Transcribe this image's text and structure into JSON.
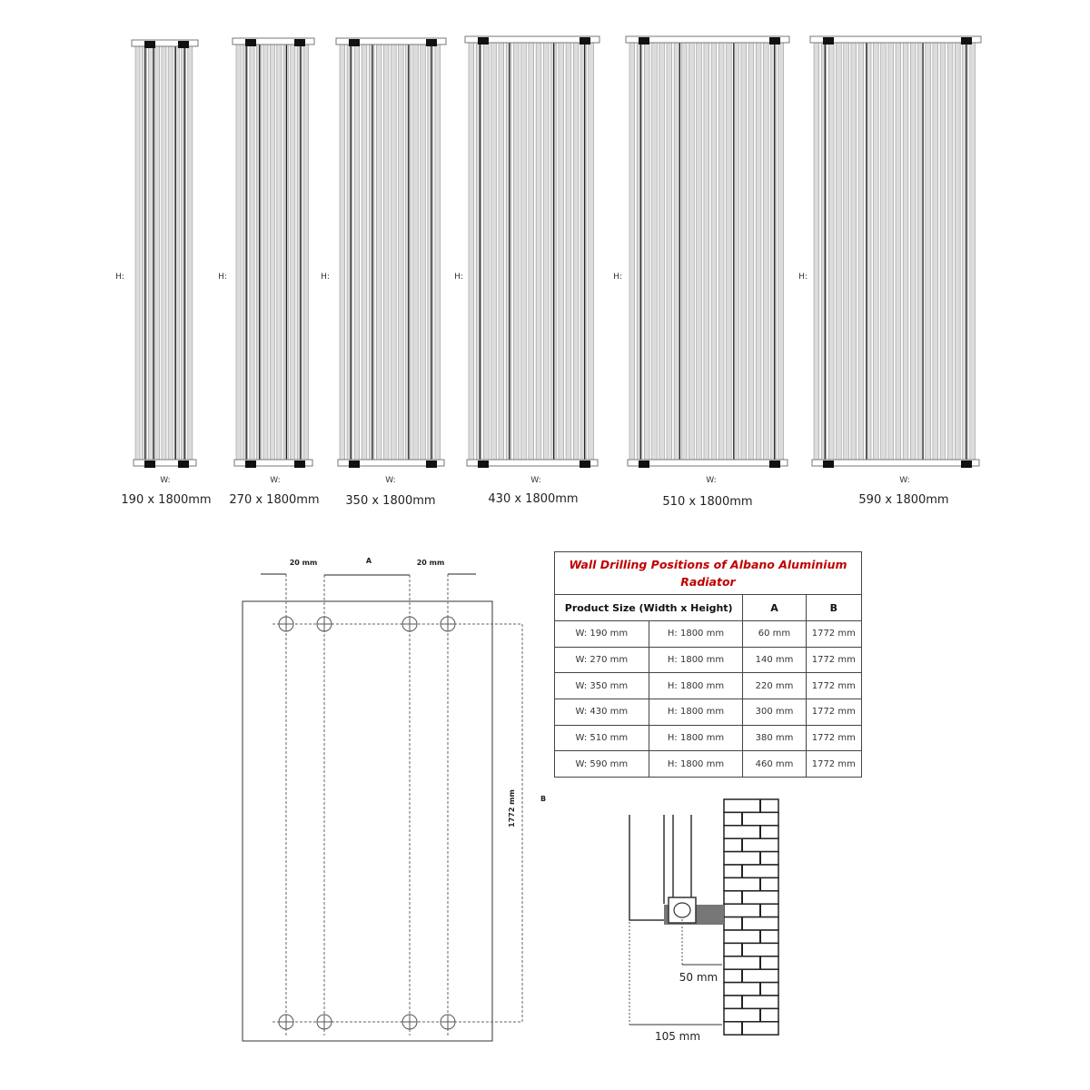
{
  "radiators": [
    {
      "h_label": "H:",
      "w_label": "W:",
      "caption": "190 x 1800mm"
    },
    {
      "h_label": "H:",
      "w_label": "W:",
      "caption": "270 x 1800mm"
    },
    {
      "h_label": "H:",
      "w_label": "W:",
      "caption": "350 x 1800mm"
    },
    {
      "h_label": "H:",
      "w_label": "W:",
      "caption": "430 x 1800mm"
    },
    {
      "h_label": "H:",
      "w_label": "W:",
      "caption": "510 x 1800mm"
    },
    {
      "h_label": "H:",
      "w_label": "W:",
      "caption": "590 x 1800mm"
    }
  ],
  "template": {
    "left_offset": "20 mm",
    "center": "A",
    "right_offset": "20 mm",
    "height_dim": "1772 mm",
    "height_label": "B"
  },
  "table": {
    "title": "Wall Drilling Positions of Albano Aluminium Radiator",
    "headers": [
      "Product Size (Width x Height)",
      "A",
      "B"
    ],
    "rows": [
      [
        "W: 190 mm",
        "H: 1800 mm",
        "60 mm",
        "1772 mm"
      ],
      [
        "W: 270 mm",
        "H: 1800 mm",
        "140 mm",
        "1772 mm"
      ],
      [
        "W: 350 mm",
        "H: 1800 mm",
        "220 mm",
        "1772 mm"
      ],
      [
        "W: 430 mm",
        "H: 1800 mm",
        "300 mm",
        "1772 mm"
      ],
      [
        "W: 510 mm",
        "H: 1800 mm",
        "380 mm",
        "1772 mm"
      ],
      [
        "W: 590 mm",
        "H: 1800 mm",
        "460 mm",
        "1772 mm"
      ]
    ],
    "title_color": "#c00000"
  },
  "wall_detail": {
    "bracket_to_wall": "50 mm",
    "front_to_wall": "105 mm"
  }
}
